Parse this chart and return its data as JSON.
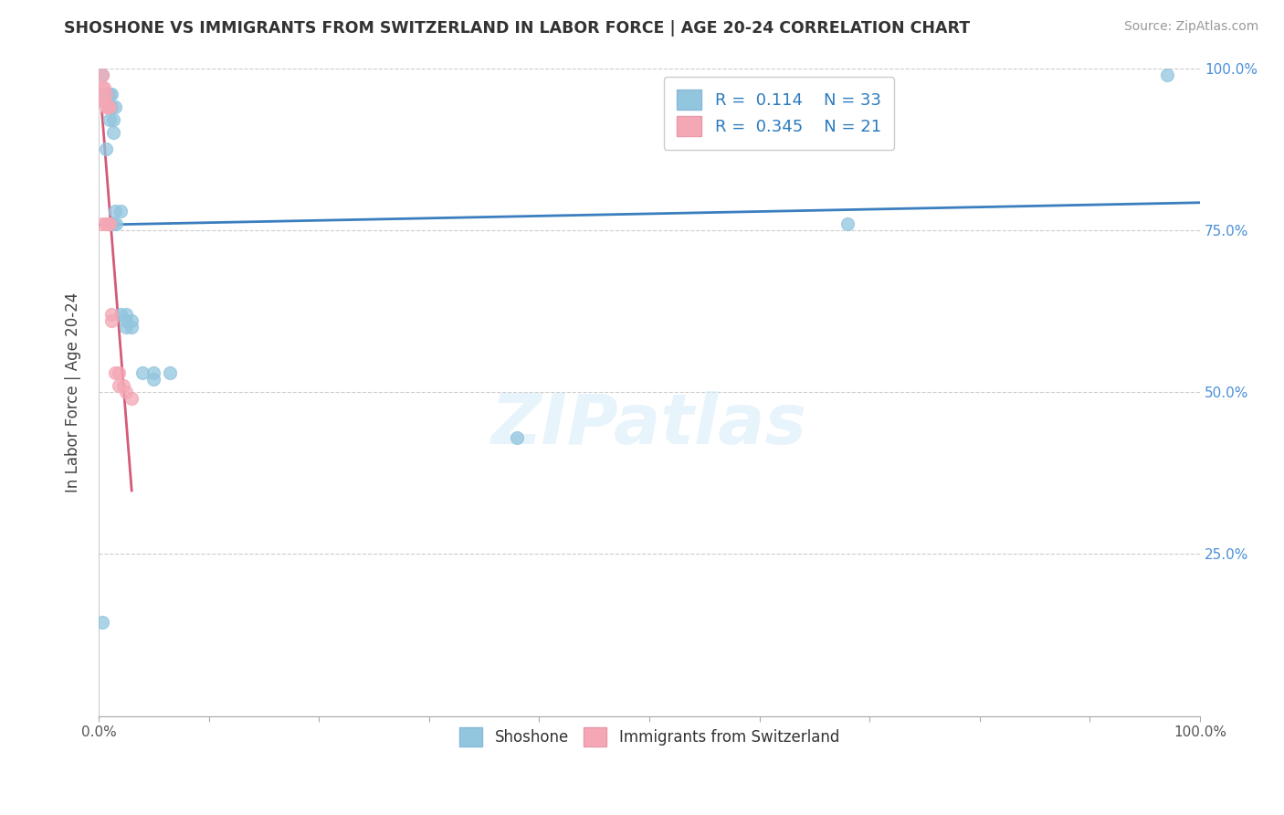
{
  "title": "SHOSHONE VS IMMIGRANTS FROM SWITZERLAND IN LABOR FORCE | AGE 20-24 CORRELATION CHART",
  "source_text": "Source: ZipAtlas.com",
  "ylabel": "In Labor Force | Age 20-24",
  "xlim": [
    0.0,
    1.0
  ],
  "ylim": [
    0.0,
    1.0
  ],
  "ytick_positions": [
    0.0,
    0.25,
    0.5,
    0.75,
    1.0
  ],
  "ytick_labels_right": [
    "",
    "25.0%",
    "50.0%",
    "75.0%",
    "100.0%"
  ],
  "shoshone_color": "#92c5de",
  "switzerland_color": "#f4a7b4",
  "shoshone_line_color": "#3a7ebf",
  "switzerland_line_color": "#d45a78",
  "R_shoshone": 0.114,
  "N_shoshone": 33,
  "R_switzerland": 0.345,
  "N_switzerland": 21,
  "shoshone_points_x": [
    0.003,
    0.003,
    0.003,
    0.007,
    0.007,
    0.008,
    0.008,
    0.01,
    0.01,
    0.01,
    0.01,
    0.012,
    0.012,
    0.013,
    0.013,
    0.013,
    0.015,
    0.015,
    0.016,
    0.02,
    0.02,
    0.025,
    0.025,
    0.025,
    0.03,
    0.03,
    0.04,
    0.05,
    0.05,
    0.065,
    0.38,
    0.68,
    0.97
  ],
  "shoshone_points_y": [
    0.99,
    0.96,
    0.145,
    0.96,
    0.875,
    0.96,
    0.945,
    0.96,
    0.94,
    0.92,
    0.76,
    0.96,
    0.94,
    0.92,
    0.9,
    0.76,
    0.94,
    0.78,
    0.76,
    0.78,
    0.62,
    0.62,
    0.61,
    0.6,
    0.61,
    0.6,
    0.53,
    0.53,
    0.52,
    0.53,
    0.43,
    0.76,
    0.99
  ],
  "switzerland_points_x": [
    0.003,
    0.003,
    0.003,
    0.003,
    0.005,
    0.005,
    0.007,
    0.007,
    0.007,
    0.008,
    0.008,
    0.01,
    0.01,
    0.012,
    0.012,
    0.015,
    0.018,
    0.018,
    0.022,
    0.025,
    0.03
  ],
  "switzerland_points_y": [
    0.99,
    0.97,
    0.95,
    0.76,
    0.97,
    0.95,
    0.96,
    0.94,
    0.76,
    0.94,
    0.76,
    0.94,
    0.76,
    0.62,
    0.61,
    0.53,
    0.53,
    0.51,
    0.51,
    0.5,
    0.49
  ]
}
